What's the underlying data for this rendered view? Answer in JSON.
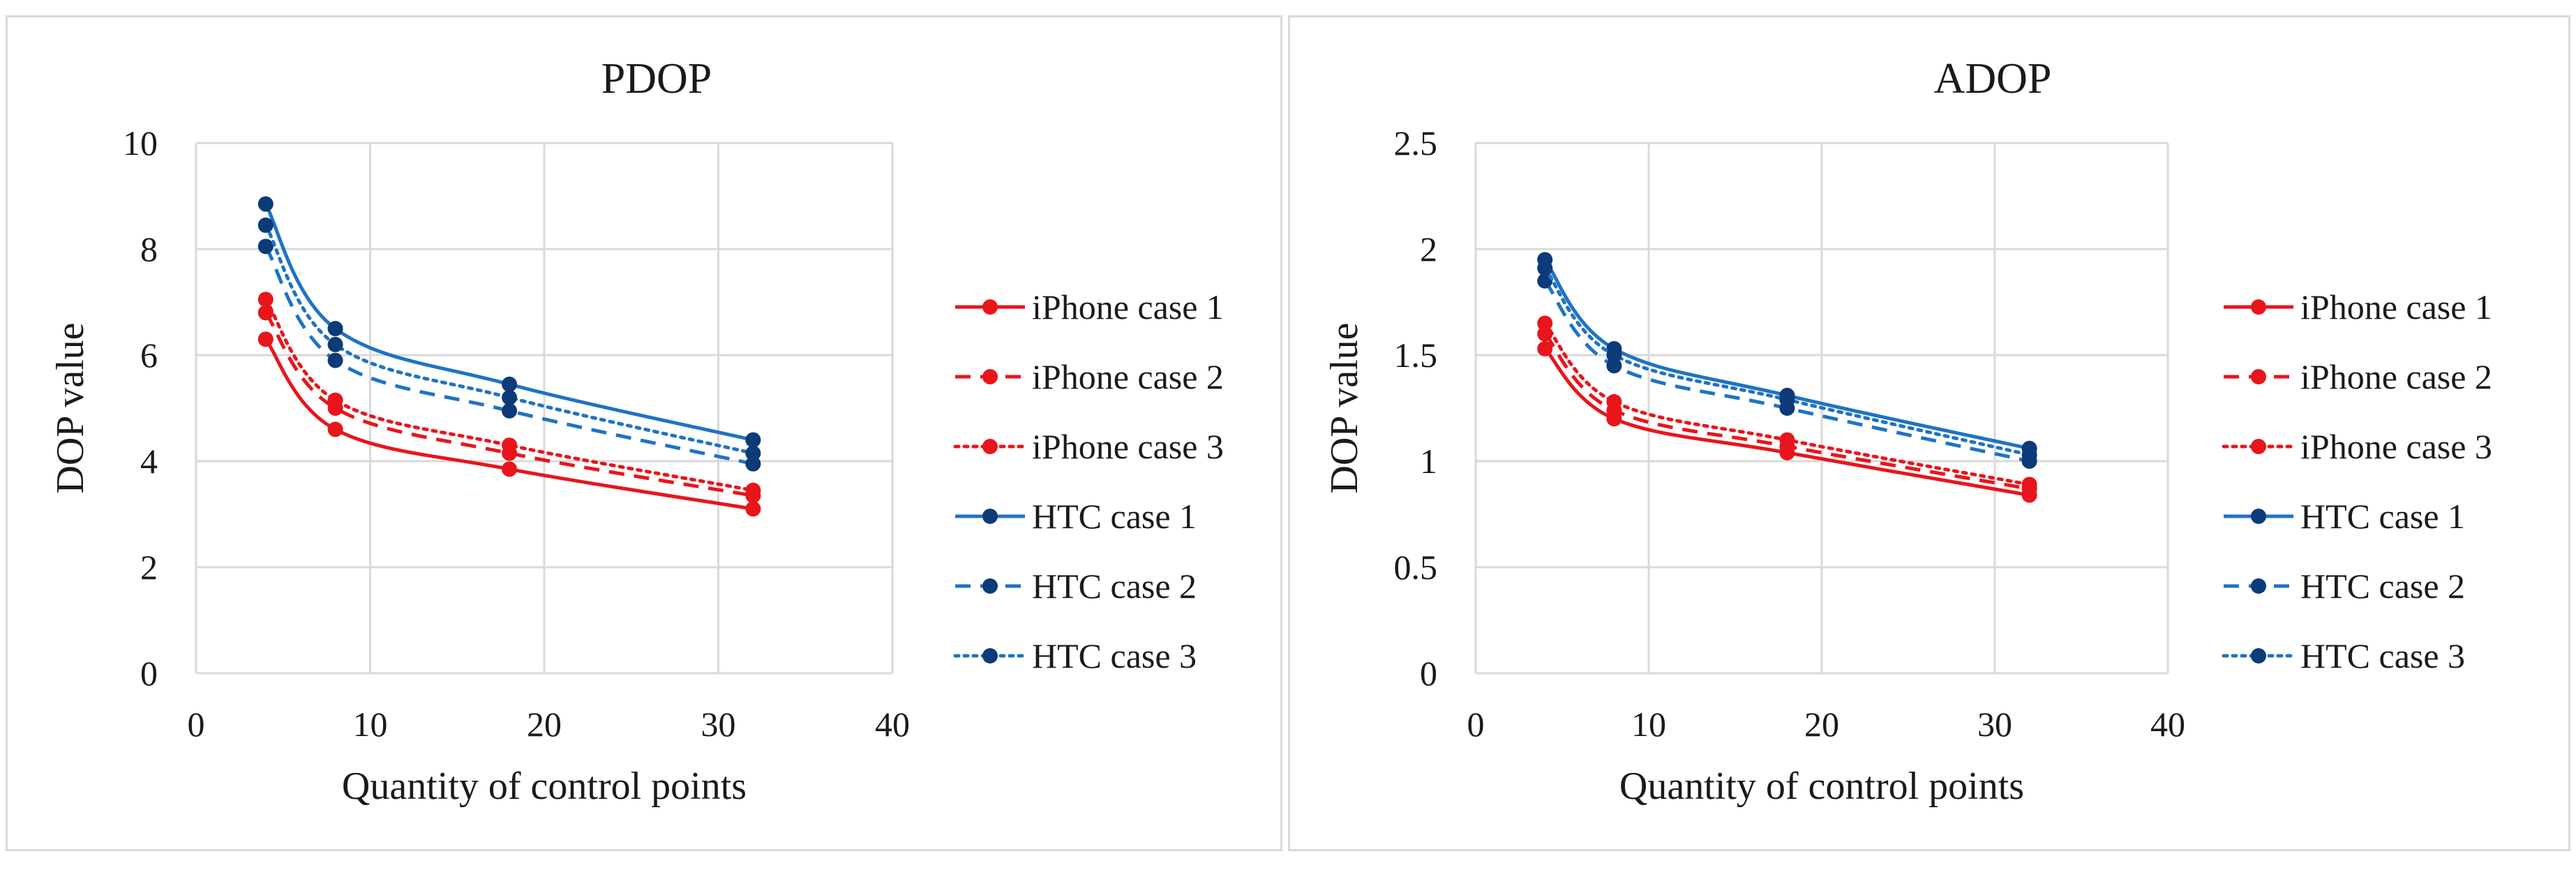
{
  "colors": {
    "iphone": "#e8151b",
    "htc_line": "#1f73c3",
    "htc_marker": "#0d3a78",
    "grid": "#d9d9d9"
  },
  "chart_data": [
    {
      "type": "line",
      "title": "PDOP",
      "xlabel": "Quantity of control points",
      "ylabel": "DOP value",
      "xlim": [
        0,
        40
      ],
      "ylim": [
        0,
        10
      ],
      "xticks": [
        "0",
        "10",
        "20",
        "30",
        "40"
      ],
      "yticks": [
        "0",
        "2",
        "4",
        "6",
        "8",
        "10"
      ],
      "grid": true,
      "legend_position": "right",
      "x": [
        4,
        8,
        18,
        32
      ],
      "series": [
        {
          "name": "iPhone case 1",
          "values": [
            6.3,
            4.6,
            3.85,
            3.1
          ],
          "color": "#e8151b",
          "dash": "solid"
        },
        {
          "name": "iPhone case 2",
          "values": [
            6.8,
            5.0,
            4.15,
            3.35
          ],
          "color": "#e8151b",
          "dash": "dashed"
        },
        {
          "name": "iPhone case 3",
          "values": [
            7.05,
            5.15,
            4.3,
            3.45
          ],
          "color": "#e8151b",
          "dash": "dotted"
        },
        {
          "name": "HTC case 1",
          "values": [
            8.85,
            6.5,
            5.45,
            4.4
          ],
          "color": "#1f73c3",
          "dash": "solid"
        },
        {
          "name": "HTC case 2",
          "values": [
            8.05,
            5.9,
            4.95,
            3.95
          ],
          "color": "#1f73c3",
          "dash": "dashed"
        },
        {
          "name": "HTC case 3",
          "values": [
            8.45,
            6.2,
            5.2,
            4.15
          ],
          "color": "#1f73c3",
          "dash": "dotted"
        }
      ]
    },
    {
      "type": "line",
      "title": "ADOP",
      "xlabel": "Quantity of control points",
      "ylabel": "DOP value",
      "xlim": [
        0,
        40
      ],
      "ylim": [
        0,
        2.5
      ],
      "xticks": [
        "0",
        "10",
        "20",
        "30",
        "40"
      ],
      "yticks": [
        "0",
        "0.5",
        "1",
        "1.5",
        "2",
        "2.5"
      ],
      "grid": true,
      "legend_position": "right",
      "x": [
        4,
        8,
        18,
        32
      ],
      "series": [
        {
          "name": "iPhone case 1",
          "values": [
            1.53,
            1.2,
            1.04,
            0.84
          ],
          "color": "#e8151b",
          "dash": "solid"
        },
        {
          "name": "iPhone case 2",
          "values": [
            1.6,
            1.24,
            1.07,
            0.87
          ],
          "color": "#e8151b",
          "dash": "dashed"
        },
        {
          "name": "iPhone case 3",
          "values": [
            1.65,
            1.28,
            1.1,
            0.89
          ],
          "color": "#e8151b",
          "dash": "dotted"
        },
        {
          "name": "HTC case 1",
          "values": [
            1.95,
            1.53,
            1.31,
            1.06
          ],
          "color": "#1f73c3",
          "dash": "solid"
        },
        {
          "name": "HTC case 2",
          "values": [
            1.85,
            1.45,
            1.25,
            1.0
          ],
          "color": "#1f73c3",
          "dash": "dashed"
        },
        {
          "name": "HTC case 3",
          "values": [
            1.91,
            1.5,
            1.29,
            1.03
          ],
          "color": "#1f73c3",
          "dash": "dotted"
        }
      ]
    }
  ]
}
